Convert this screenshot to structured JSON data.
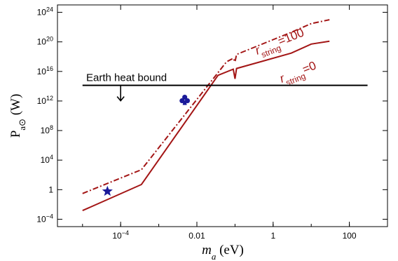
{
  "chart_data": {
    "type": "line",
    "xlabel": "m_a (eV)",
    "ylabel": "P_a⊙ (W)",
    "xscale": "log",
    "yscale": "log",
    "xlim": [
      2.2e-06,
      1000
    ],
    "ylim": [
      1e-05,
      1e+25
    ],
    "grid": false,
    "x_ticks": [
      {
        "value": 0.0001,
        "label": "10",
        "exp": "−4"
      },
      {
        "value": 0.01,
        "label": "0.01",
        "exp": ""
      },
      {
        "value": 1,
        "label": "1",
        "exp": ""
      },
      {
        "value": 100,
        "label": "100",
        "exp": ""
      }
    ],
    "y_ticks": [
      {
        "value": 1e+24,
        "label": "10",
        "exp": "24"
      },
      {
        "value": 1e+20,
        "label": "10",
        "exp": "20"
      },
      {
        "value": 1e+16,
        "label": "10",
        "exp": "16"
      },
      {
        "value": 1000000000000.0,
        "label": "10",
        "exp": "12"
      },
      {
        "value": 100000000.0,
        "label": "10",
        "exp": "8"
      },
      {
        "value": 10000.0,
        "label": "10",
        "exp": "4"
      },
      {
        "value": 1,
        "label": "1",
        "exp": ""
      },
      {
        "value": 0.0001,
        "label": "10",
        "exp": "−4"
      }
    ],
    "colors": {
      "curve": "#a31515",
      "marker": "#1a1a9a",
      "bound": "#000000"
    },
    "series": [
      {
        "name": "r_string=0",
        "label_main": "r",
        "label_sub": "string",
        "label_rest": "=0",
        "style": "solid",
        "points": [
          [
            1e-05,
            0.0015
          ],
          [
            0.00035,
            5
          ],
          [
            0.036,
            3000000000000000.0
          ],
          [
            0.09,
            2e+16
          ],
          [
            0.1,
            1000000000000000.0
          ],
          [
            0.11,
            2.5e+16
          ],
          [
            3,
            3e+18
          ],
          [
            10,
            5e+19
          ],
          [
            30,
            1.2e+20
          ]
        ]
      },
      {
        "name": "r_string=100",
        "label_main": "r",
        "label_sub": "string",
        "label_rest": "=100",
        "style": "dashdot",
        "points": [
          [
            1e-05,
            0.3
          ],
          [
            0.00035,
            500
          ],
          [
            0.06,
            2e+17
          ],
          [
            0.09,
            6e+17
          ],
          [
            0.1,
            2e+17
          ],
          [
            0.11,
            2e+18
          ],
          [
            3,
            2e+21
          ],
          [
            10,
            3e+22
          ],
          [
            30,
            1e+23
          ]
        ]
      }
    ],
    "earth_bound": {
      "label": "Earth heat bound",
      "y": 130000000000000.0,
      "x_start": 1e-05,
      "x_end": 300,
      "arrow_x": 0.0001
    },
    "markers": [
      {
        "name": "star",
        "x": 4.5e-05,
        "y": 0.6
      },
      {
        "name": "club",
        "x": 0.0048,
        "y": 1500000000000.0
      }
    ]
  }
}
